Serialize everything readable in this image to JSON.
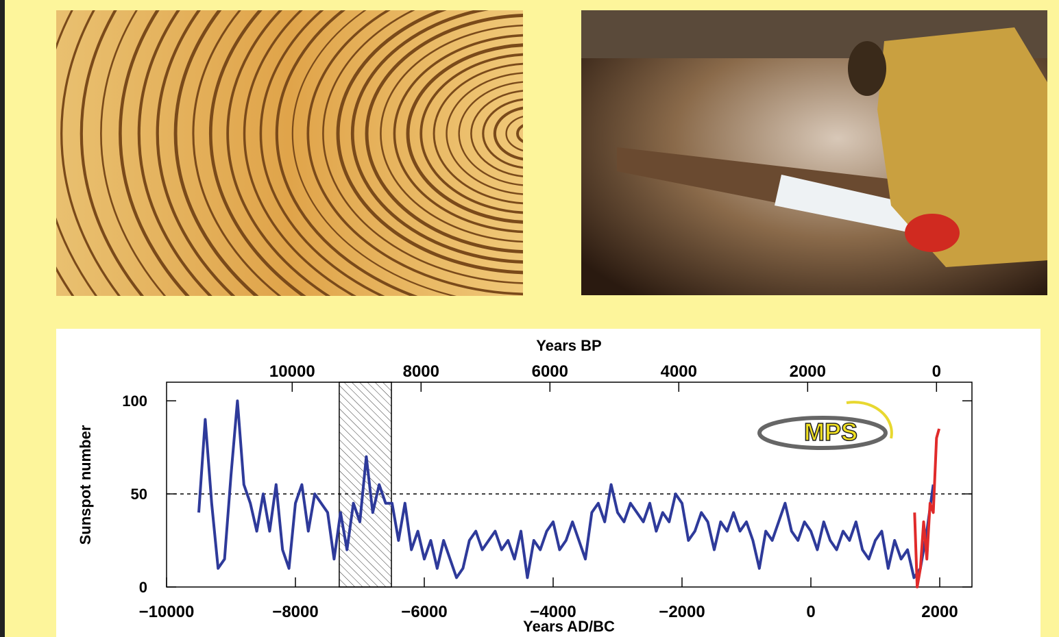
{
  "chart_data": {
    "type": "line",
    "xlabel": "Years AD/BC",
    "ylabel": "Sunspot number",
    "x2label": "Years BP",
    "logo_text": "MPS",
    "xlim": [
      -10000,
      2500
    ],
    "xticks": [
      {
        "value": -10000,
        "label": "−10000"
      },
      {
        "value": -8000,
        "label": "−8000"
      },
      {
        "value": -6000,
        "label": "−6000"
      },
      {
        "value": -4000,
        "label": "−4000"
      },
      {
        "value": -2000,
        "label": "−2000"
      },
      0,
      2000
    ],
    "x2lim": [
      11950,
      -550
    ],
    "x2ticks": [
      10000,
      8000,
      6000,
      4000,
      2000,
      0
    ],
    "ylim": [
      0,
      110
    ],
    "yticks": [
      0,
      50,
      100
    ],
    "reference_line": 50,
    "shaded_span": [
      -7320,
      -6510
    ],
    "series": [
      {
        "color": "#2e3a9a",
        "x": [
          -9500,
          -9400,
          -9300,
          -9200,
          -9100,
          -9000,
          -8900,
          -8800,
          -8700,
          -8600,
          -8500,
          -8400,
          -8300,
          -8200,
          -8100,
          -8000,
          -7900,
          -7800,
          -7700,
          -7600,
          -7500,
          -7400,
          -7300,
          -7200,
          -7100,
          -7000,
          -6900,
          -6800,
          -6700,
          -6600,
          -6500,
          -6400,
          -6300,
          -6200,
          -6100,
          -6000,
          -5900,
          -5800,
          -5700,
          -5600,
          -5500,
          -5400,
          -5300,
          -5200,
          -5100,
          -5000,
          -4900,
          -4800,
          -4700,
          -4600,
          -4500,
          -4400,
          -4300,
          -4200,
          -4100,
          -4000,
          -3900,
          -3800,
          -3700,
          -3600,
          -3500,
          -3400,
          -3300,
          -3200,
          -3100,
          -3000,
          -2900,
          -2800,
          -2700,
          -2600,
          -2500,
          -2400,
          -2300,
          -2200,
          -2100,
          -2000,
          -1900,
          -1800,
          -1700,
          -1600,
          -1500,
          -1400,
          -1300,
          -1200,
          -1100,
          -1000,
          -900,
          -800,
          -700,
          -600,
          -500,
          -400,
          -300,
          -200,
          -100,
          0,
          100,
          200,
          300,
          400,
          500,
          600,
          700,
          800,
          900,
          1000,
          1100,
          1200,
          1300,
          1400,
          1500,
          1600,
          1700,
          1800,
          1900
        ],
        "values": [
          40,
          90,
          45,
          10,
          15,
          60,
          100,
          55,
          45,
          30,
          50,
          30,
          55,
          20,
          10,
          45,
          55,
          30,
          50,
          45,
          40,
          15,
          40,
          20,
          45,
          35,
          70,
          40,
          55,
          45,
          45,
          25,
          45,
          20,
          30,
          15,
          25,
          10,
          25,
          15,
          5,
          10,
          25,
          30,
          20,
          25,
          30,
          20,
          25,
          15,
          30,
          5,
          25,
          20,
          30,
          35,
          20,
          25,
          35,
          25,
          15,
          40,
          45,
          35,
          55,
          40,
          35,
          45,
          40,
          35,
          45,
          30,
          40,
          35,
          50,
          45,
          25,
          30,
          40,
          35,
          20,
          35,
          30,
          40,
          30,
          35,
          25,
          10,
          30,
          25,
          35,
          45,
          30,
          25,
          35,
          30,
          20,
          35,
          25,
          20,
          30,
          25,
          35,
          20,
          15,
          25,
          30,
          10,
          25,
          15,
          20,
          5,
          10,
          30,
          55
        ]
      },
      {
        "color": "#e02a2a",
        "x": [
          1610,
          1650,
          1700,
          1750,
          1800,
          1850,
          1900,
          1950,
          1990
        ],
        "values": [
          40,
          0,
          10,
          35,
          15,
          45,
          40,
          80,
          85
        ]
      }
    ]
  }
}
